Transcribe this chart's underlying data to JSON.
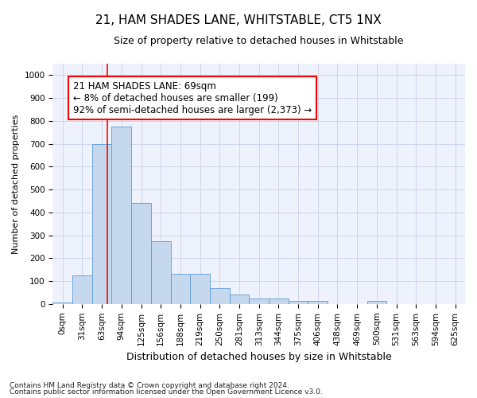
{
  "title": "21, HAM SHADES LANE, WHITSTABLE, CT5 1NX",
  "subtitle": "Size of property relative to detached houses in Whitstable",
  "xlabel": "Distribution of detached houses by size in Whitstable",
  "ylabel": "Number of detached properties",
  "bar_color": "#c5d8ee",
  "bar_edge_color": "#5b9bd5",
  "background_color": "#eef2fc",
  "categories": [
    "0sqm",
    "31sqm",
    "63sqm",
    "94sqm",
    "125sqm",
    "156sqm",
    "188sqm",
    "219sqm",
    "250sqm",
    "281sqm",
    "313sqm",
    "344sqm",
    "375sqm",
    "406sqm",
    "438sqm",
    "469sqm",
    "500sqm",
    "531sqm",
    "563sqm",
    "594sqm",
    "625sqm"
  ],
  "values": [
    5,
    125,
    700,
    775,
    440,
    275,
    130,
    130,
    70,
    40,
    25,
    25,
    15,
    15,
    0,
    0,
    15,
    0,
    0,
    0,
    0
  ],
  "ylim": [
    0,
    1050
  ],
  "yticks": [
    0,
    100,
    200,
    300,
    400,
    500,
    600,
    700,
    800,
    900,
    1000
  ],
  "red_line_x": 2.26,
  "annotation_line1": "21 HAM SHADES LANE: 69sqm",
  "annotation_line2": "← 8% of detached houses are smaller (199)",
  "annotation_line3": "92% of semi-detached houses are larger (2,373) →",
  "footer1": "Contains HM Land Registry data © Crown copyright and database right 2024.",
  "footer2": "Contains public sector information licensed under the Open Government Licence v3.0.",
  "grid_color": "#c8d0e8",
  "title_fontsize": 11,
  "subtitle_fontsize": 9,
  "tick_fontsize": 7.5,
  "ylabel_fontsize": 8,
  "xlabel_fontsize": 9,
  "annotation_fontsize": 8.5,
  "footer_fontsize": 6.5
}
